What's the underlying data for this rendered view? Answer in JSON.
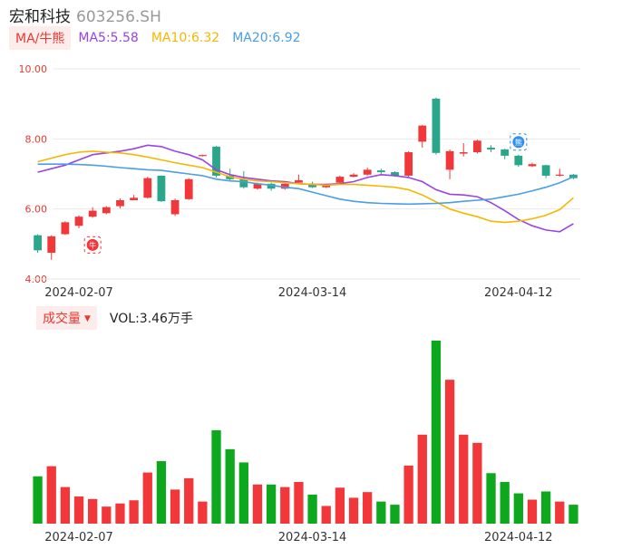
{
  "header": {
    "name": "宏和科技",
    "code": "603256.SH"
  },
  "legend": {
    "tag": "MA/牛熊",
    "ma5": "MA5:5.58",
    "ma10": "MA10:6.32",
    "ma20": "MA20:6.92"
  },
  "volume_header": {
    "tag": "成交量",
    "vol": "VOL:3.46万手"
  },
  "colors": {
    "up": "#f2373a",
    "down": "#2aa68a",
    "vol_down": "#0ea81f",
    "ma5": "#9b43e3",
    "ma10": "#f5b800",
    "ma20": "#4a9ee8"
  },
  "badges": {
    "bull": "牛",
    "bear": "熊"
  },
  "chart_data": {
    "type": "candlestick",
    "price_axis": {
      "ticks": [
        "10.00",
        "8.00",
        "6.00",
        "4.00"
      ],
      "ylim": [
        4,
        10
      ]
    },
    "x_ticks": [
      {
        "label": "2024-02-07",
        "index": 3
      },
      {
        "label": "2024-03-14",
        "index": 20
      },
      {
        "label": "2024-04-12",
        "index": 35
      }
    ],
    "candles": [
      {
        "o": 5.25,
        "c": 4.82,
        "h": 5.28,
        "l": 4.75
      },
      {
        "o": 4.75,
        "c": 5.22,
        "h": 5.25,
        "l": 4.55
      },
      {
        "o": 5.28,
        "c": 5.62,
        "h": 5.65,
        "l": 5.26
      },
      {
        "o": 5.52,
        "c": 5.78,
        "h": 5.82,
        "l": 5.45
      },
      {
        "o": 5.78,
        "c": 5.95,
        "h": 6.05,
        "l": 5.75
      },
      {
        "o": 5.88,
        "c": 6.05,
        "h": 6.08,
        "l": 5.85
      },
      {
        "o": 6.08,
        "c": 6.25,
        "h": 6.3,
        "l": 6.02
      },
      {
        "o": 6.25,
        "c": 6.32,
        "h": 6.4,
        "l": 6.25
      },
      {
        "o": 6.32,
        "c": 6.88,
        "h": 6.92,
        "l": 6.3
      },
      {
        "o": 6.95,
        "c": 6.22,
        "h": 6.96,
        "l": 6.2
      },
      {
        "o": 5.85,
        "c": 6.25,
        "h": 6.3,
        "l": 5.8
      },
      {
        "o": 6.28,
        "c": 6.85,
        "h": 6.88,
        "l": 6.26
      },
      {
        "o": 7.52,
        "c": 7.54,
        "h": 7.55,
        "l": 7.5
      },
      {
        "o": 7.78,
        "c": 6.95,
        "h": 7.8,
        "l": 6.9
      },
      {
        "o": 6.95,
        "c": 6.85,
        "h": 7.15,
        "l": 6.8
      },
      {
        "o": 6.85,
        "c": 6.62,
        "h": 7.08,
        "l": 6.58
      },
      {
        "o": 6.58,
        "c": 6.72,
        "h": 6.75,
        "l": 6.55
      },
      {
        "o": 6.72,
        "c": 6.58,
        "h": 6.75,
        "l": 6.52
      },
      {
        "o": 6.58,
        "c": 6.72,
        "h": 6.75,
        "l": 6.55
      },
      {
        "o": 6.75,
        "c": 6.82,
        "h": 6.98,
        "l": 6.72
      },
      {
        "o": 6.72,
        "c": 6.62,
        "h": 6.78,
        "l": 6.6
      },
      {
        "o": 6.62,
        "c": 6.68,
        "h": 6.72,
        "l": 6.6
      },
      {
        "o": 6.75,
        "c": 6.92,
        "h": 6.95,
        "l": 6.72
      },
      {
        "o": 6.92,
        "c": 6.98,
        "h": 7.02,
        "l": 6.9
      },
      {
        "o": 6.98,
        "c": 7.12,
        "h": 7.18,
        "l": 6.95
      },
      {
        "o": 7.1,
        "c": 7.05,
        "h": 7.15,
        "l": 7.0
      },
      {
        "o": 7.05,
        "c": 6.95,
        "h": 7.08,
        "l": 6.92
      },
      {
        "o": 6.95,
        "c": 7.62,
        "h": 7.65,
        "l": 6.92
      },
      {
        "o": 7.92,
        "c": 8.38,
        "h": 8.4,
        "l": 7.75
      },
      {
        "o": 9.15,
        "c": 7.6,
        "h": 9.18,
        "l": 7.55
      },
      {
        "o": 7.12,
        "c": 7.65,
        "h": 7.7,
        "l": 6.85
      },
      {
        "o": 7.58,
        "c": 7.62,
        "h": 7.88,
        "l": 7.5
      },
      {
        "o": 7.62,
        "c": 7.95,
        "h": 7.98,
        "l": 7.58
      },
      {
        "o": 7.75,
        "c": 7.7,
        "h": 7.82,
        "l": 7.62
      },
      {
        "o": 7.7,
        "c": 7.52,
        "h": 7.72,
        "l": 7.42
      },
      {
        "o": 7.52,
        "c": 7.25,
        "h": 7.55,
        "l": 7.2
      },
      {
        "o": 7.22,
        "c": 7.28,
        "h": 7.32,
        "l": 7.2
      },
      {
        "o": 7.25,
        "c": 6.95,
        "h": 7.26,
        "l": 6.88
      },
      {
        "o": 6.96,
        "c": 6.98,
        "h": 7.15,
        "l": 6.92
      },
      {
        "o": 6.98,
        "c": 6.88,
        "h": 7.0,
        "l": 6.85
      }
    ],
    "ma5": [
      7.05,
      7.15,
      7.25,
      7.4,
      7.55,
      7.6,
      7.65,
      7.72,
      7.82,
      7.78,
      7.65,
      7.55,
      7.4,
      7.12,
      6.98,
      6.9,
      6.85,
      6.8,
      6.78,
      6.72,
      6.7,
      6.7,
      6.72,
      6.78,
      6.9,
      6.98,
      6.95,
      6.9,
      6.78,
      6.55,
      6.42,
      6.4,
      6.35,
      6.18,
      5.95,
      5.7,
      5.52,
      5.4,
      5.35,
      5.58
    ],
    "ma10": [
      7.35,
      7.45,
      7.55,
      7.62,
      7.65,
      7.62,
      7.6,
      7.55,
      7.48,
      7.4,
      7.32,
      7.25,
      7.18,
      7.05,
      6.92,
      6.85,
      6.8,
      6.78,
      6.75,
      6.72,
      6.7,
      6.68,
      6.7,
      6.7,
      6.68,
      6.65,
      6.62,
      6.55,
      6.4,
      6.2,
      6.0,
      5.88,
      5.78,
      5.65,
      5.62,
      5.65,
      5.72,
      5.82,
      5.98,
      6.32
    ],
    "ma20": [
      7.28,
      7.28,
      7.28,
      7.27,
      7.25,
      7.22,
      7.18,
      7.15,
      7.12,
      7.1,
      7.05,
      7.0,
      6.95,
      6.85,
      6.8,
      6.78,
      6.72,
      6.68,
      6.62,
      6.58,
      6.48,
      6.38,
      6.28,
      6.22,
      6.18,
      6.16,
      6.15,
      6.14,
      6.15,
      6.16,
      6.18,
      6.22,
      6.25,
      6.28,
      6.35,
      6.42,
      6.52,
      6.62,
      6.75,
      6.92
    ],
    "volume": [
      7.5,
      9.1,
      5.8,
      4.3,
      3.9,
      2.7,
      3.2,
      3.7,
      8.1,
      9.9,
      5.4,
      7.2,
      3.5,
      14.8,
      11.8,
      9.7,
      6.2,
      6.2,
      5.8,
      6.6,
      4.6,
      2.8,
      5.7,
      4.1,
      5.0,
      3.5,
      3.0,
      9.2,
      14.1,
      29.0,
      22.8,
      14.1,
      12.8,
      8.0,
      6.6,
      4.8,
      3.8,
      5.1,
      3.5,
      3.0
    ],
    "markers": [
      {
        "label": "牛",
        "index": 4
      },
      {
        "label": "熊",
        "index": 35
      }
    ]
  }
}
